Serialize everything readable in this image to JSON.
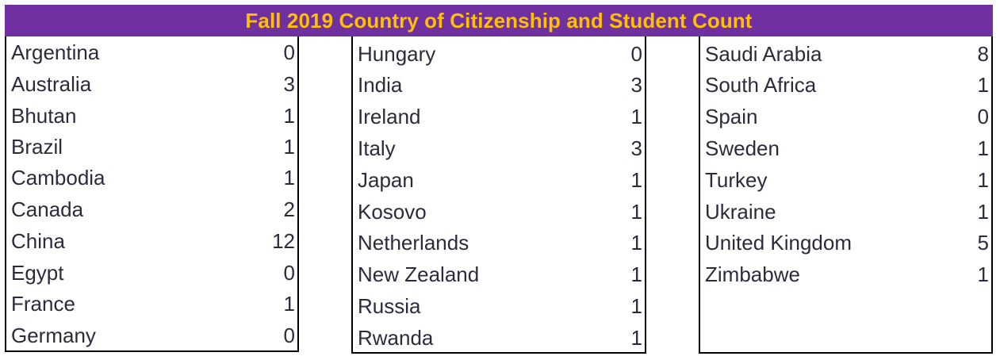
{
  "title": "Fall 2019 Country of Citizenship and Student Count",
  "columns": [
    [
      {
        "country": "Argentina",
        "count": "0"
      },
      {
        "country": "Australia",
        "count": "3"
      },
      {
        "country": "Bhutan",
        "count": "1"
      },
      {
        "country": "Brazil",
        "count": "1"
      },
      {
        "country": "Cambodia",
        "count": "1"
      },
      {
        "country": "Canada",
        "count": "2"
      },
      {
        "country": "China",
        "count": "12"
      },
      {
        "country": "Egypt",
        "count": "0"
      },
      {
        "country": "France",
        "count": "1"
      },
      {
        "country": "Germany",
        "count": "0"
      }
    ],
    [
      {
        "country": "Hungary",
        "count": "0"
      },
      {
        "country": "India",
        "count": "3"
      },
      {
        "country": "Ireland",
        "count": "1"
      },
      {
        "country": "Italy",
        "count": "3"
      },
      {
        "country": "Japan",
        "count": "1"
      },
      {
        "country": "Kosovo",
        "count": "1"
      },
      {
        "country": "Netherlands",
        "count": "1"
      },
      {
        "country": "New Zealand",
        "count": "1"
      },
      {
        "country": "Russia",
        "count": "1"
      },
      {
        "country": "Rwanda",
        "count": "1"
      }
    ],
    [
      {
        "country": "Saudi Arabia",
        "count": "8"
      },
      {
        "country": "South Africa",
        "count": "1"
      },
      {
        "country": "Spain",
        "count": "0"
      },
      {
        "country": "Sweden",
        "count": "1"
      },
      {
        "country": "Turkey",
        "count": "1"
      },
      {
        "country": "Ukraine",
        "count": "1"
      },
      {
        "country": "United Kingdom",
        "count": "5"
      },
      {
        "country": "Zimbabwe",
        "count": "1"
      }
    ]
  ]
}
